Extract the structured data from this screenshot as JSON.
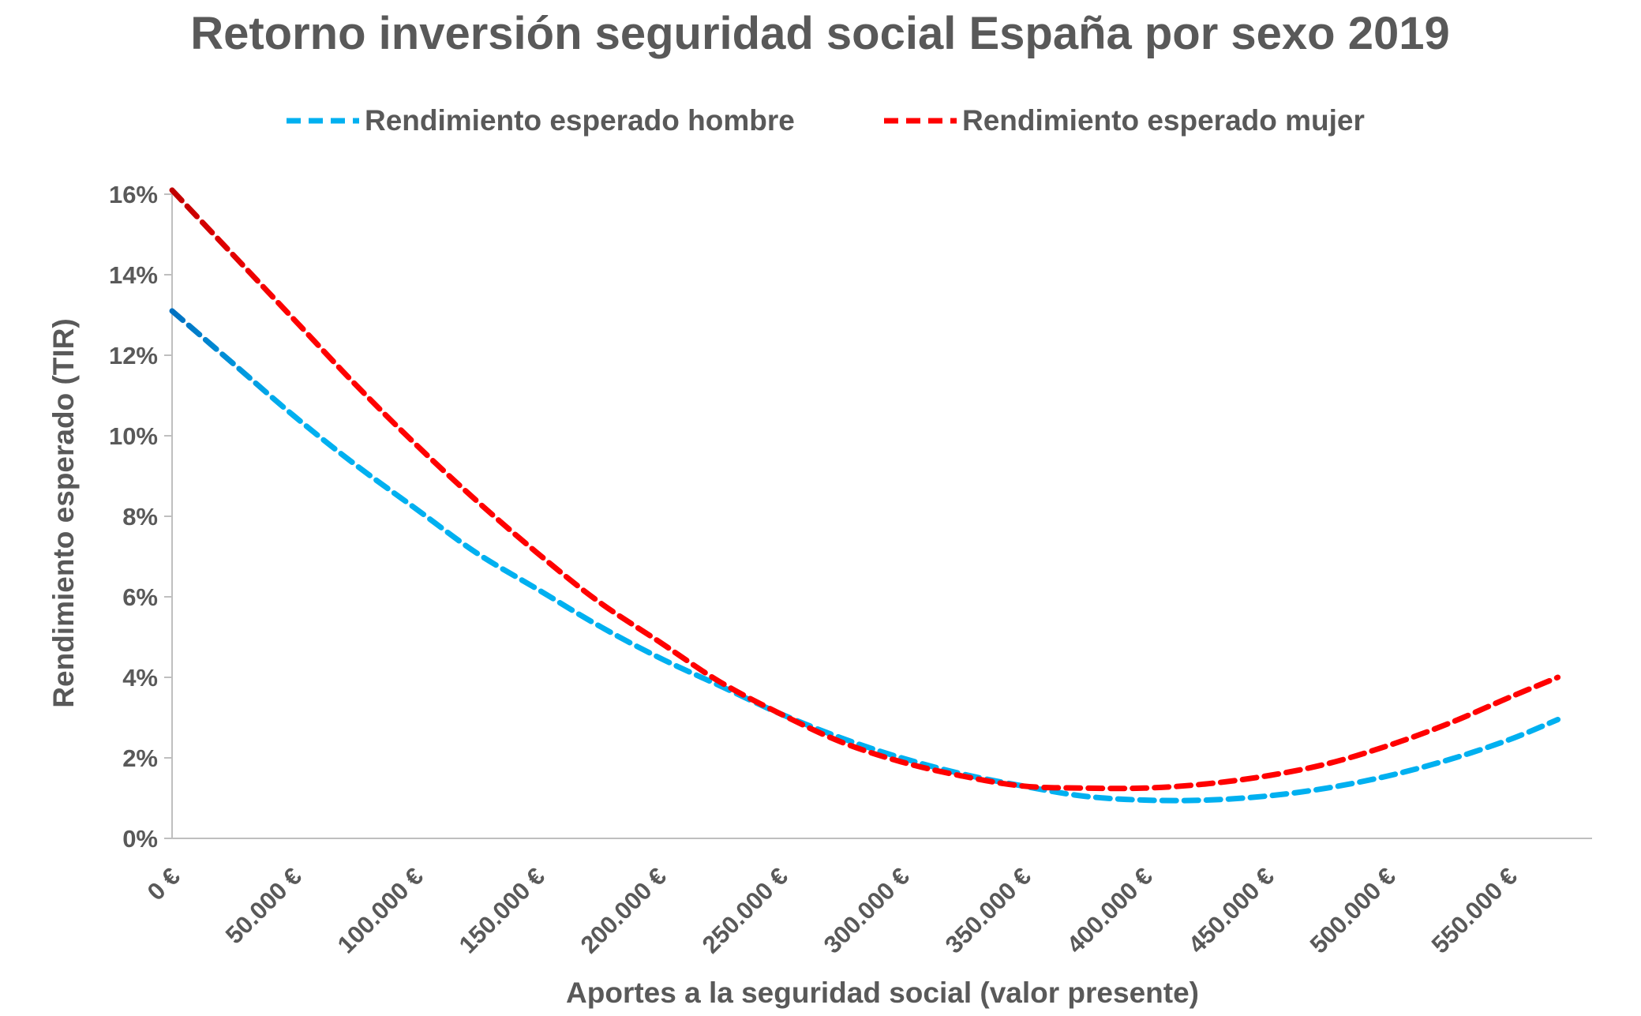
{
  "chart_data": {
    "type": "line",
    "title": "Retorno inversión seguridad social España por sexo 2019",
    "xlabel": "Aportes a la seguridad social (valor presente)",
    "ylabel": "Rendimiento esperado (TIR)",
    "xlim": [
      0,
      580000
    ],
    "ylim": [
      0,
      16
    ],
    "y_ticks": [
      0,
      2,
      4,
      6,
      8,
      10,
      12,
      14,
      16
    ],
    "y_tick_labels": [
      "0%",
      "2%",
      "4%",
      "6%",
      "8%",
      "10%",
      "12%",
      "14%",
      "16%"
    ],
    "x_ticks": [
      0,
      50000,
      100000,
      150000,
      200000,
      250000,
      300000,
      350000,
      400000,
      450000,
      500000,
      550000
    ],
    "x_tick_labels": [
      "0 €",
      "50.000 €",
      "100.000 €",
      "150.000 €",
      "200.000 €",
      "250.000 €",
      "300.000 €",
      "350.000 €",
      "400.000 €",
      "450.000 €",
      "500.000 €",
      "550.000 €"
    ],
    "grid": false,
    "legend_position": "top",
    "x": [
      0,
      25000,
      50000,
      75000,
      100000,
      125000,
      150000,
      175000,
      200000,
      225000,
      250000,
      275000,
      300000,
      325000,
      350000,
      375000,
      400000,
      425000,
      450000,
      475000,
      500000,
      525000,
      550000,
      570000
    ],
    "series": [
      {
        "name": "Rendimiento esperado hombre",
        "color": "#00B0F0",
        "start_color": "#0070C0",
        "style": "dashed",
        "values": [
          13.1,
          11.8,
          10.5,
          9.3,
          8.2,
          7.1,
          6.2,
          5.3,
          4.5,
          3.8,
          3.1,
          2.5,
          2.0,
          1.6,
          1.3,
          1.05,
          0.95,
          0.95,
          1.05,
          1.25,
          1.55,
          1.95,
          2.45,
          2.95
        ]
      },
      {
        "name": "Rendimiento esperado mujer",
        "color": "#FF0000",
        "start_color": "#C00000",
        "style": "dashed",
        "values": [
          16.1,
          14.5,
          12.9,
          11.3,
          9.8,
          8.4,
          7.1,
          5.9,
          4.9,
          3.9,
          3.1,
          2.4,
          1.9,
          1.55,
          1.3,
          1.25,
          1.25,
          1.35,
          1.55,
          1.85,
          2.3,
          2.85,
          3.5,
          4.0
        ]
      }
    ]
  }
}
